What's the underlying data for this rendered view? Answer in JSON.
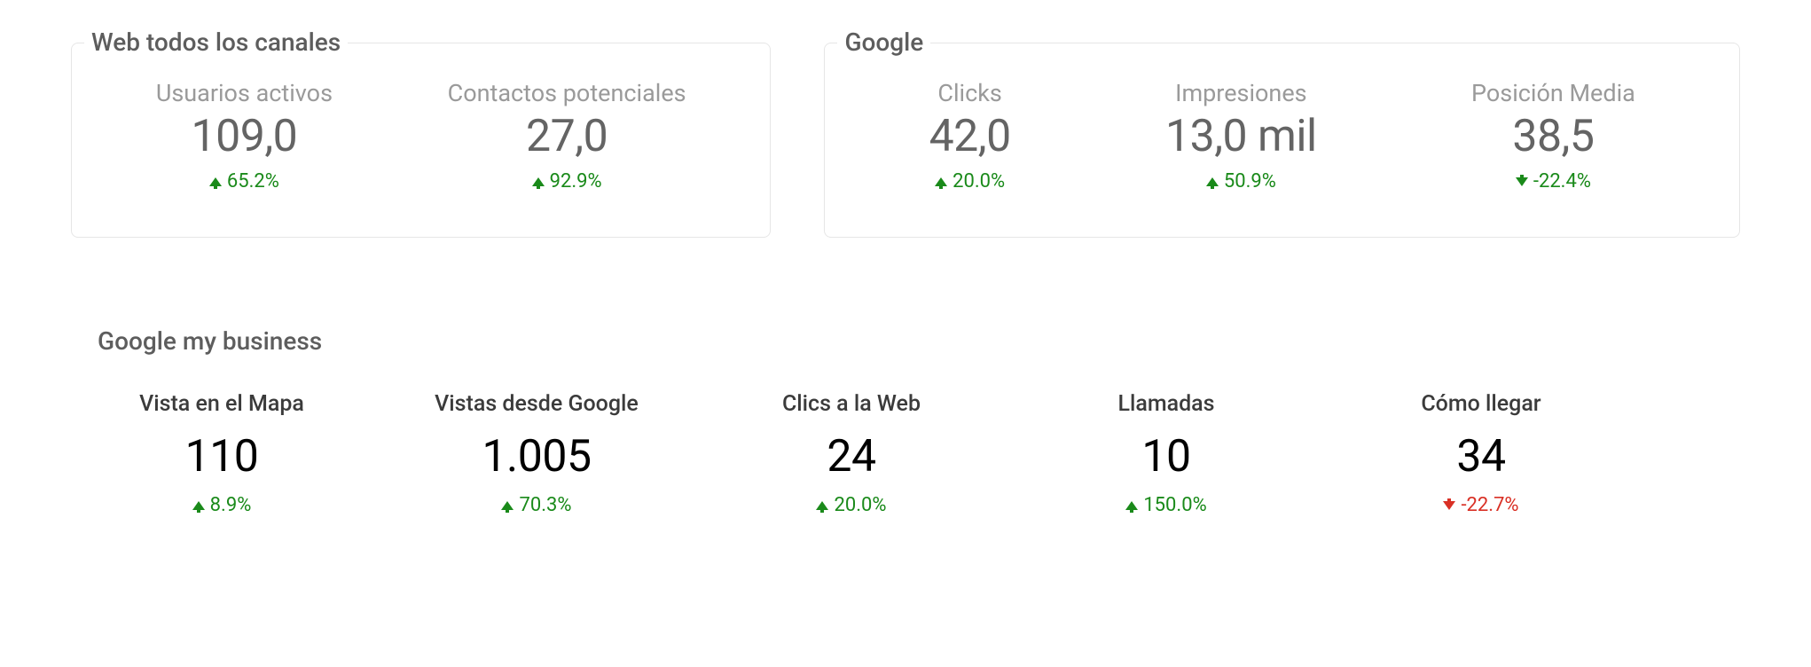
{
  "colors": {
    "panel_border": "#e6e6e6",
    "label_muted": "#9a9a9a",
    "value_gray": "#646464",
    "value_black": "#000000",
    "title_gray": "#5d5d5d",
    "positive": "#1a8a1a",
    "negative": "#d93025",
    "background": "#ffffff"
  },
  "typography": {
    "font_family": "Roboto",
    "title_fontsize": 28,
    "label_fontsize": 27,
    "value_fontsize": 50,
    "change_fontsize": 22
  },
  "panels": {
    "web": {
      "title": "Web todos los canales",
      "stats": [
        {
          "label": "Usuarios activos",
          "value": "109,0",
          "change": "65.2%",
          "direction": "up",
          "color": "green"
        },
        {
          "label": "Contactos potenciales",
          "value": "27,0",
          "change": "92.9%",
          "direction": "up",
          "color": "green"
        }
      ]
    },
    "google": {
      "title": "Google",
      "stats": [
        {
          "label": "Clicks",
          "value": "42,0",
          "change": "20.0%",
          "direction": "up",
          "color": "green"
        },
        {
          "label": "Impresiones",
          "value": "13,0 mil",
          "change": "50.9%",
          "direction": "up",
          "color": "green"
        },
        {
          "label": "Posición Media",
          "value": "38,5",
          "change": "-22.4%",
          "direction": "down",
          "color": "green"
        }
      ]
    }
  },
  "gmb": {
    "title": "Google my business",
    "stats": [
      {
        "label": "Vista en el Mapa",
        "value": "110",
        "change": "8.9%",
        "direction": "up",
        "color": "green"
      },
      {
        "label": "Vistas desde Google",
        "value": "1.005",
        "change": "70.3%",
        "direction": "up",
        "color": "green"
      },
      {
        "label": "Clics a la Web",
        "value": "24",
        "change": "20.0%",
        "direction": "up",
        "color": "green"
      },
      {
        "label": "Llamadas",
        "value": "10",
        "change": "150.0%",
        "direction": "up",
        "color": "green"
      },
      {
        "label": "Cómo llegar",
        "value": "34",
        "change": "-22.7%",
        "direction": "down",
        "color": "red"
      }
    ]
  }
}
